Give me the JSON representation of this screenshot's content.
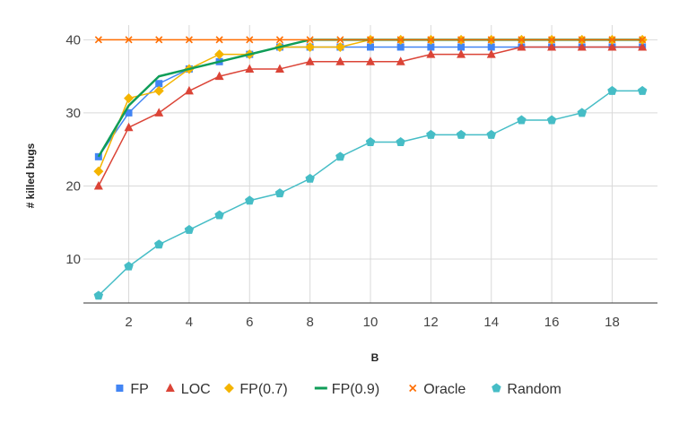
{
  "chart_data": {
    "type": "line",
    "xlabel": "B",
    "ylabel": "# killed bugs",
    "xlim": [
      0.5,
      19.5
    ],
    "ylim": [
      4,
      42
    ],
    "x_ticks": [
      2,
      4,
      6,
      8,
      10,
      12,
      14,
      16,
      18
    ],
    "y_ticks": [
      10,
      20,
      30,
      40
    ],
    "grid": true,
    "legend_position": "bottom",
    "x": [
      1,
      2,
      3,
      4,
      5,
      6,
      7,
      8,
      9,
      10,
      11,
      12,
      13,
      14,
      15,
      16,
      17,
      18,
      19
    ],
    "series": [
      {
        "name": "FP",
        "color": "#4285f4",
        "marker": "square",
        "line": true,
        "values": [
          24,
          30,
          34,
          36,
          37,
          38,
          39,
          39,
          39,
          39,
          39,
          39,
          39,
          39,
          39,
          39,
          39,
          39,
          39
        ]
      },
      {
        "name": "LOC",
        "color": "#db4437",
        "marker": "triangle",
        "line": true,
        "values": [
          20,
          28,
          30,
          33,
          35,
          36,
          36,
          37,
          37,
          37,
          37,
          38,
          38,
          38,
          39,
          39,
          39,
          39,
          39
        ]
      },
      {
        "name": "FP(0.7)",
        "color": "#f4b400",
        "marker": "diamond",
        "line": true,
        "values": [
          22,
          32,
          33,
          36,
          38,
          38,
          39,
          39,
          39,
          40,
          40,
          40,
          40,
          40,
          40,
          40,
          40,
          40,
          40
        ]
      },
      {
        "name": "FP(0.9)",
        "color": "#0f9d58",
        "marker": "none",
        "line": true,
        "values": [
          24,
          31,
          35,
          36,
          37,
          38,
          39,
          40,
          40,
          40,
          40,
          40,
          40,
          40,
          40,
          40,
          40,
          40,
          40
        ]
      },
      {
        "name": "Oracle",
        "color": "#ff6d00",
        "marker": "x",
        "line": true,
        "values": [
          40,
          40,
          40,
          40,
          40,
          40,
          40,
          40,
          40,
          40,
          40,
          40,
          40,
          40,
          40,
          40,
          40,
          40,
          40
        ]
      },
      {
        "name": "Random",
        "color": "#46bdc6",
        "marker": "pentagon",
        "line": true,
        "values": [
          5,
          9,
          12,
          14,
          16,
          18,
          19,
          21,
          24,
          26,
          26,
          27,
          27,
          27,
          29,
          29,
          30,
          33,
          33
        ]
      }
    ]
  }
}
